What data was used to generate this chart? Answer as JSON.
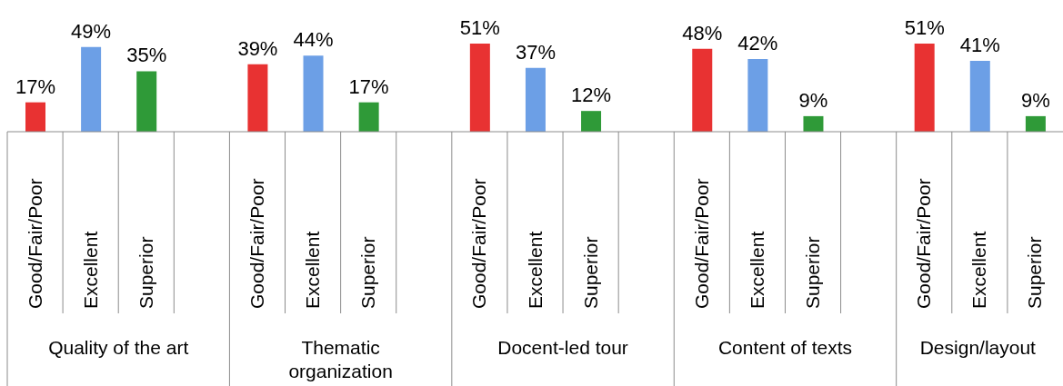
{
  "chart_data": {
    "type": "bar",
    "categories": [
      "Good/Fair/Poor",
      "Excellent",
      "Superior",
      null,
      "Good/Fair/Poor",
      "Excellent",
      "Superior",
      null,
      "Good/Fair/Poor",
      "Excellent",
      "Superior",
      null,
      "Good/Fair/Poor",
      "Excellent",
      "Superior",
      null,
      "Good/Fair/Poor",
      "Excellent",
      "Superior"
    ],
    "values": [
      17,
      49,
      35,
      null,
      39,
      44,
      17,
      null,
      51,
      37,
      12,
      null,
      48,
      42,
      9,
      null,
      51,
      41,
      9
    ],
    "value_labels": [
      "17%",
      "49%",
      "35%",
      null,
      "39%",
      "44%",
      "17%",
      null,
      "51%",
      "37%",
      "12%",
      null,
      "48%",
      "42%",
      "9%",
      null,
      "51%",
      "41%",
      "9%"
    ],
    "colors": [
      "#e83232",
      "#6c9fe6",
      "#2f9a38",
      null,
      "#e83232",
      "#6c9fe6",
      "#2f9a38",
      null,
      "#e83232",
      "#6c9fe6",
      "#2f9a38",
      null,
      "#e83232",
      "#6c9fe6",
      "#2f9a38",
      null,
      "#e83232",
      "#6c9fe6",
      "#2f9a38"
    ],
    "annotations": [
      "Quality of the art",
      "Thematic organization",
      "Docent-led tour",
      "Content of texts",
      "Design/layout"
    ],
    "data_labels": false
  }
}
